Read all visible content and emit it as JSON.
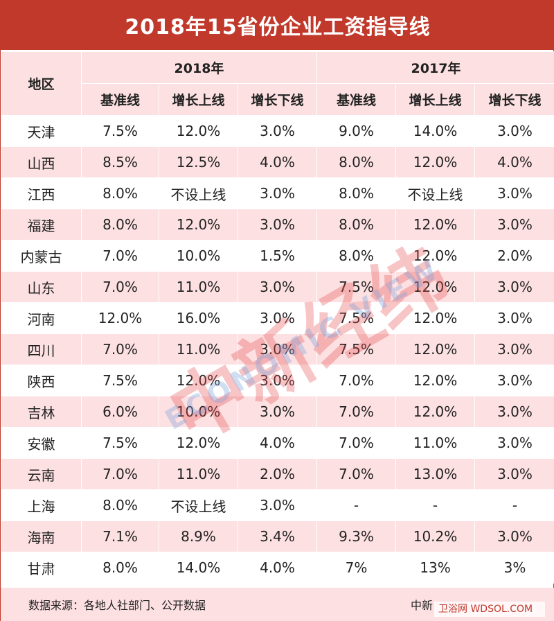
{
  "title": "2018年15省份企业工资指导线",
  "header": {
    "region_label": "地区",
    "year_2018": "2018年",
    "year_2017": "2017年",
    "sub_cols": [
      "基准线",
      "增长上线",
      "增长下线",
      "基准线",
      "增长上线",
      "增长下线"
    ]
  },
  "rows": [
    {
      "region": "天津",
      "cells": [
        "7.5%",
        "12.0%",
        "3.0%",
        "9.0%",
        "14.0%",
        "3.0%"
      ]
    },
    {
      "region": "山西",
      "cells": [
        "8.5%",
        "12.5%",
        "4.0%",
        "8.0%",
        "12.0%",
        "4.0%"
      ]
    },
    {
      "region": "江西",
      "cells": [
        "8.0%",
        "不设上线",
        "3.0%",
        "8.0%",
        "不设上线",
        "3.0%"
      ]
    },
    {
      "region": "福建",
      "cells": [
        "8.0%",
        "12.0%",
        "3.0%",
        "8.0%",
        "12.0%",
        "3.0%"
      ]
    },
    {
      "region": "内蒙古",
      "cells": [
        "7.0%",
        "10.0%",
        "1.5%",
        "8.0%",
        "12.0%",
        "2.0%"
      ]
    },
    {
      "region": "山东",
      "cells": [
        "7.0%",
        "11.0%",
        "3.0%",
        "7.5%",
        "12.0%",
        "3.0%"
      ]
    },
    {
      "region": "河南",
      "cells": [
        "12.0%",
        "16.0%",
        "3.0%",
        "7.5%",
        "12.0%",
        "3.0%"
      ]
    },
    {
      "region": "四川",
      "cells": [
        "7.0%",
        "11.0%",
        "3.0%",
        "7.5%",
        "12.0%",
        "3.0%"
      ]
    },
    {
      "region": "陕西",
      "cells": [
        "7.5%",
        "12.0%",
        "3.0%",
        "7.0%",
        "12.0%",
        "3.0%"
      ]
    },
    {
      "region": "吉林",
      "cells": [
        "6.0%",
        "10.0%",
        "3.0%",
        "7.0%",
        "12.0%",
        "3.0%"
      ]
    },
    {
      "region": "安徽",
      "cells": [
        "7.5%",
        "12.0%",
        "4.0%",
        "7.0%",
        "11.0%",
        "3.0%"
      ]
    },
    {
      "region": "云南",
      "cells": [
        "7.0%",
        "11.0%",
        "2.0%",
        "7.0%",
        "13.0%",
        "3.0%"
      ]
    },
    {
      "region": "上海",
      "cells": [
        "8.0%",
        "不设上线",
        "3.0%",
        "-",
        "-",
        "-"
      ]
    },
    {
      "region": "海南",
      "cells": [
        "7.1%",
        "8.9%",
        "3.4%",
        "9.3%",
        "10.2%",
        "3.0%"
      ]
    },
    {
      "region": "甘肃",
      "cells": [
        "8.0%",
        "14.0%",
        "4.0%",
        "7%",
        "13%",
        "3%"
      ]
    }
  ],
  "footer": {
    "source": "数据来源：各地人社部门、公开数据",
    "brand": "中新",
    "site_watermark": "卫浴网 WDSOL.COM"
  },
  "watermark": {
    "main": "中新经纬",
    "sub": "ECONOMIC VIEW"
  },
  "colors": {
    "title_bg": "#c0392b",
    "row_pink": "#fde0e2",
    "row_white": "#ffffff"
  }
}
